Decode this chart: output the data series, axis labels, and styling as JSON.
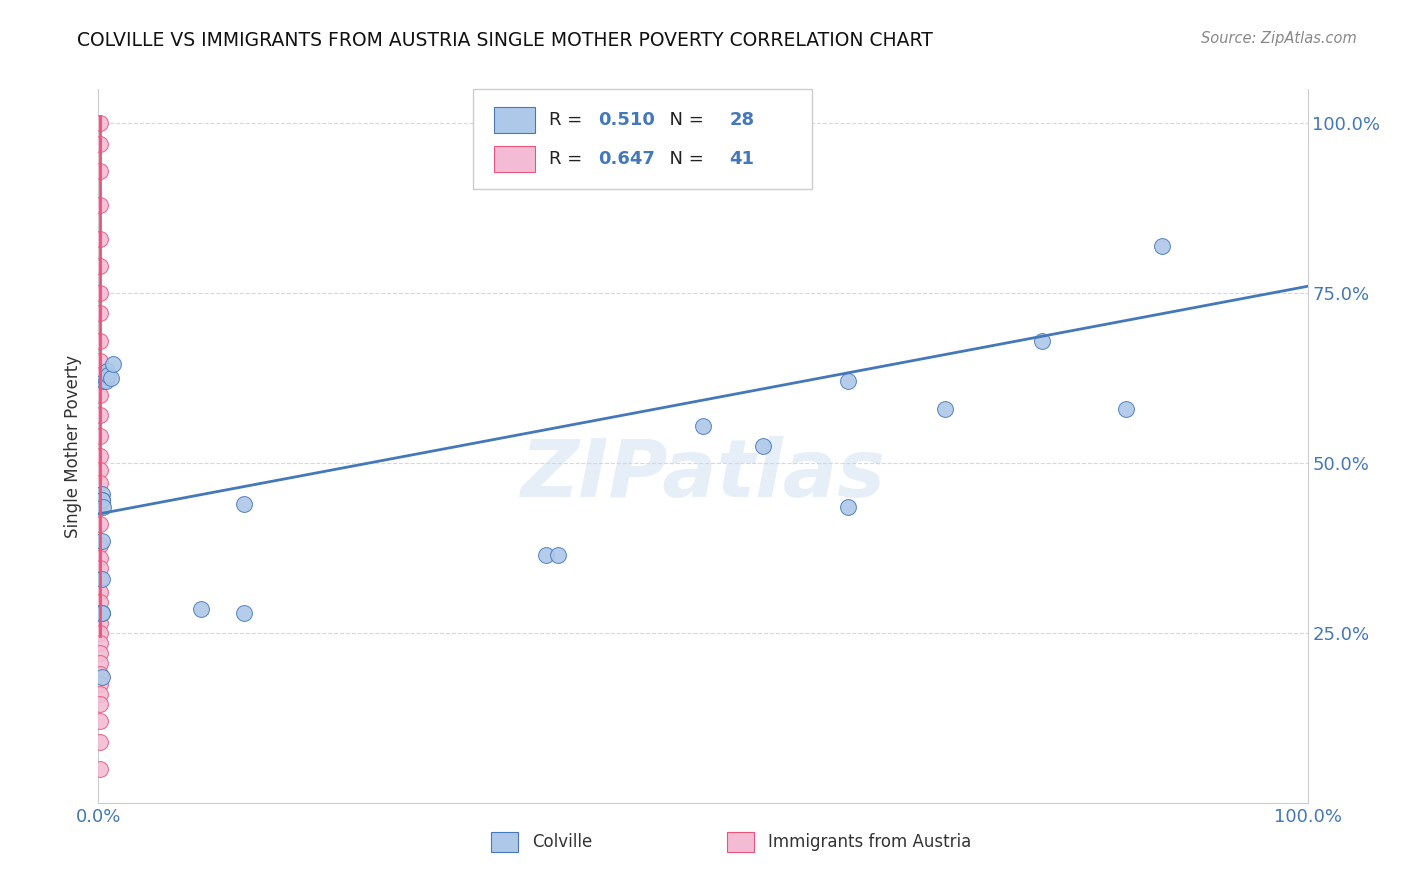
{
  "title": "COLVILLE VS IMMIGRANTS FROM AUSTRIA SINGLE MOTHER POVERTY CORRELATION CHART",
  "source": "Source: ZipAtlas.com",
  "ylabel": "Single Mother Poverty",
  "legend_label1": "Colville",
  "legend_label2": "Immigrants from Austria",
  "R1": 0.51,
  "N1": 28,
  "R2": 0.647,
  "N2": 41,
  "colville_color": "#adc8e8",
  "colville_line_color": "#4478b8",
  "austria_color": "#f4bcd4",
  "austria_line_color": "#e8547a",
  "watermark": "ZIPatlas",
  "colville_x": [
    0.003,
    0.003,
    0.003,
    0.004,
    0.005,
    0.006,
    0.007,
    0.008,
    0.01,
    0.012,
    0.003,
    0.003,
    0.003,
    0.003,
    0.003,
    0.085,
    0.12,
    0.12,
    0.37,
    0.38,
    0.5,
    0.55,
    0.62,
    0.7,
    0.78,
    0.85,
    0.88,
    0.62
  ],
  "colville_y": [
    0.455,
    0.445,
    0.445,
    0.435,
    0.62,
    0.62,
    0.635,
    0.63,
    0.625,
    0.645,
    0.385,
    0.33,
    0.28,
    0.28,
    0.185,
    0.285,
    0.44,
    0.28,
    0.365,
    0.365,
    0.555,
    0.525,
    0.62,
    0.58,
    0.68,
    0.58,
    0.82,
    0.435
  ],
  "austria_x": [
    0.001,
    0.001,
    0.001,
    0.001,
    0.001,
    0.001,
    0.001,
    0.001,
    0.001,
    0.001,
    0.001,
    0.001,
    0.001,
    0.001,
    0.001,
    0.001,
    0.001,
    0.001,
    0.001,
    0.001,
    0.001,
    0.001,
    0.001,
    0.001,
    0.001,
    0.001,
    0.001,
    0.001,
    0.001,
    0.001,
    0.001,
    0.001,
    0.001,
    0.001,
    0.001,
    0.001,
    0.001,
    0.001,
    0.001,
    0.001,
    0.001
  ],
  "austria_y": [
    1.0,
    0.97,
    0.93,
    0.88,
    0.83,
    0.79,
    0.75,
    0.72,
    0.68,
    0.65,
    0.63,
    0.6,
    0.57,
    0.54,
    0.51,
    0.49,
    0.47,
    0.44,
    0.41,
    0.38,
    0.36,
    0.345,
    0.33,
    0.31,
    0.295,
    0.28,
    0.265,
    0.25,
    0.235,
    0.22,
    0.205,
    0.19,
    0.175,
    0.16,
    0.145,
    0.28,
    0.28,
    0.28,
    0.12,
    0.09,
    0.05
  ],
  "blue_line_x0": 0.0,
  "blue_line_x1": 1.0,
  "blue_line_y0": 0.425,
  "blue_line_y1": 0.76,
  "pink_line_x0": 0.001,
  "pink_line_x1": 0.001,
  "pink_line_y0": 0.245,
  "pink_line_y1": 1.01,
  "xlim": [
    0.0,
    1.0
  ],
  "ylim": [
    0.0,
    1.05
  ],
  "yticks": [
    0.25,
    0.5,
    0.75,
    1.0
  ],
  "ytick_labels": [
    "25.0%",
    "50.0%",
    "75.0%",
    "100.0%"
  ],
  "background_color": "#ffffff",
  "grid_color": "#d8d8d8"
}
